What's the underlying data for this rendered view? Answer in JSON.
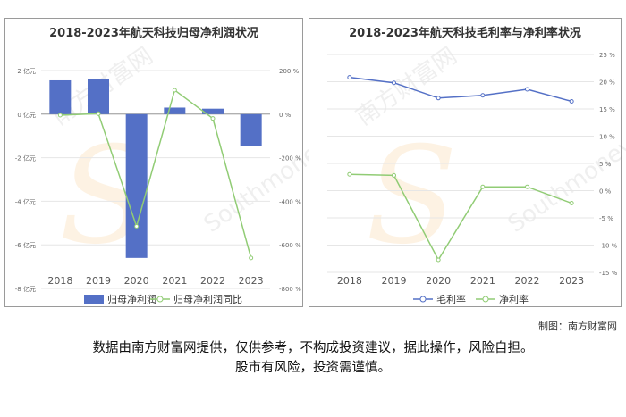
{
  "chart_data": [
    {
      "type": "bar",
      "title": "2018-2023年航天科技归母净利润状况",
      "categories": [
        "2018",
        "2019",
        "2020",
        "2021",
        "2022",
        "2023"
      ],
      "series": [
        {
          "name": "归母净利润",
          "type": "bar",
          "axis": "left",
          "unit": "亿元",
          "values": [
            1.55,
            1.6,
            -6.6,
            0.3,
            0.25,
            -1.45
          ]
        },
        {
          "name": "归母净利润同比",
          "type": "line",
          "axis": "right",
          "unit": "%",
          "values": [
            -5,
            2,
            -515,
            110,
            -20,
            -660
          ]
        }
      ],
      "yleft": {
        "ticks": [
          "2 亿元",
          "0 亿元",
          "-2 亿元",
          "-4 亿元",
          "-6 亿元",
          "-8 亿元"
        ],
        "range": [
          -8,
          2
        ]
      },
      "yright": {
        "ticks": [
          "200 %",
          "0 %",
          "-200 %",
          "-400 %",
          "-600 %",
          "-800 %"
        ],
        "range": [
          -800,
          200
        ]
      },
      "colors": {
        "bar": "#5470c6",
        "line": "#91cc75"
      },
      "legend_position": "bottom"
    },
    {
      "type": "line",
      "title": "2018-2023年航天科技毛利率与净利率状况",
      "categories": [
        "2018",
        "2019",
        "2020",
        "2021",
        "2022",
        "2023"
      ],
      "series": [
        {
          "name": "毛利率",
          "unit": "%",
          "values": [
            20.8,
            19.8,
            17.0,
            17.5,
            18.6,
            16.4
          ]
        },
        {
          "name": "净利率",
          "unit": "%",
          "values": [
            3.0,
            2.8,
            -12.7,
            0.7,
            0.7,
            -2.3
          ]
        }
      ],
      "yright": {
        "ticks": [
          "25 %",
          "20 %",
          "15 %",
          "10 %",
          "5 %",
          "0 %",
          "-5 %",
          "-10 %",
          "-15 %"
        ],
        "range": [
          -15,
          25
        ]
      },
      "colors": {
        "gross": "#5470c6",
        "net": "#91cc75"
      },
      "legend_position": "bottom"
    }
  ],
  "credit": "制图：南方财富网",
  "disclaimer_line1": "数据由南方财富网提供，仅供参考，不构成投资建议，据此操作，风险自担。",
  "disclaimer_line2": "股市有风险，投资需谨慎。",
  "watermark": {
    "text1": "南方财富网",
    "text2": "Southmoney.com"
  }
}
